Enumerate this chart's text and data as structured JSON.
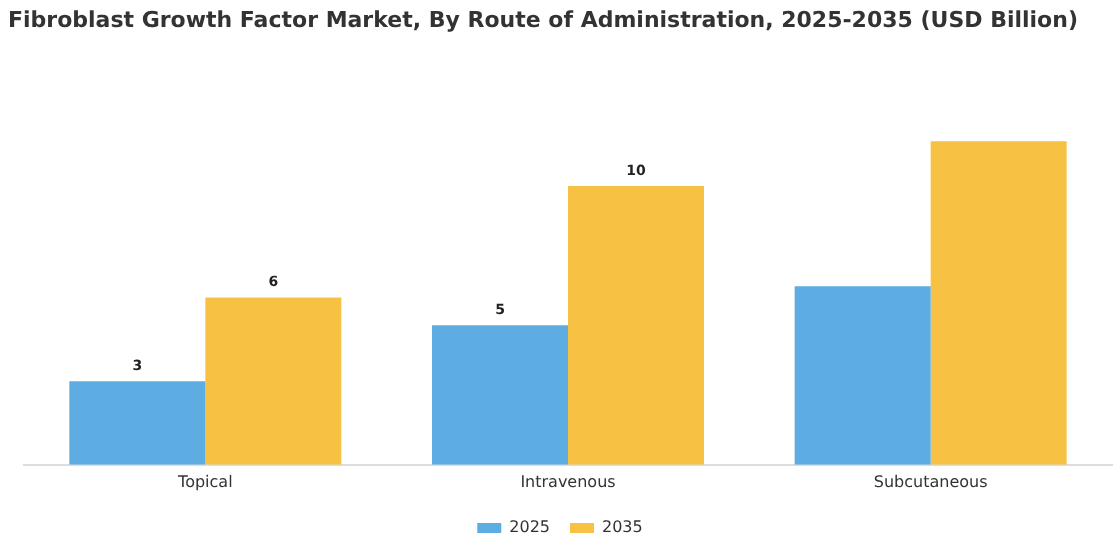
{
  "chart_data": {
    "type": "bar",
    "title": "Fibroblast Growth Factor Market, By Route of Administration, 2025-2035 (USD Billion)",
    "categories": [
      "Topical",
      "Intravenous",
      "Subcutaneous"
    ],
    "series": [
      {
        "name": "2025",
        "color": "#5dade2",
        "values": [
          3,
          5,
          6.4
        ],
        "value_labels": [
          "3",
          "5",
          null
        ]
      },
      {
        "name": "2035",
        "color": "#f7c244",
        "values": [
          6,
          10,
          11.6
        ],
        "value_labels": [
          "6",
          "10",
          null
        ]
      }
    ],
    "tick_labels": "x",
    "grid": false,
    "legend": "bottom"
  }
}
